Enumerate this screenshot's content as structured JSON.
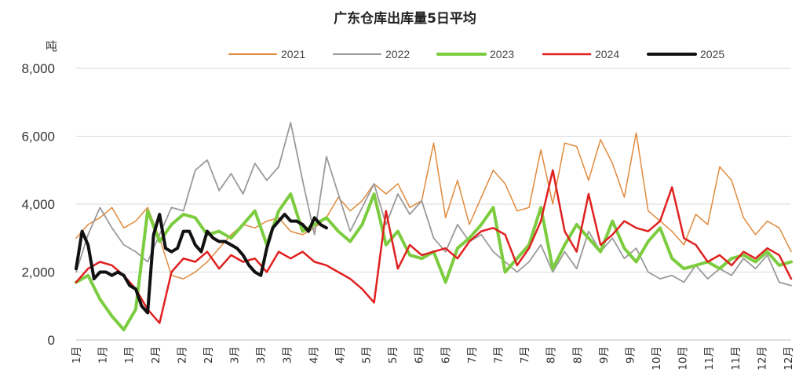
{
  "chart_data": {
    "type": "line",
    "title": "广东仓库出库量5日平均",
    "ylabel": "吨",
    "xlabel": "",
    "ylim": [
      0,
      8000
    ],
    "yticks": [
      0,
      2000,
      4000,
      6000,
      8000
    ],
    "ytick_labels": [
      "0",
      "2,000",
      "4,000",
      "6,000",
      "8,000"
    ],
    "x_categories": [
      "1月",
      "1月",
      "1月",
      "2月",
      "2月",
      "2月",
      "3月",
      "3月",
      "3月",
      "4月",
      "4月",
      "5月",
      "5月",
      "6月",
      "6月",
      "7月",
      "7月",
      "7月",
      "8月",
      "8月",
      "9月",
      "9月",
      "10月",
      "10月",
      "11月",
      "11月",
      "12月",
      "12月"
    ],
    "grid": "horizontal",
    "legend_position": "top",
    "x_range": [
      0,
      12
    ],
    "series": [
      {
        "name": "2021",
        "color": "#e08a3c",
        "width": 1.5,
        "x": [
          0.0,
          0.2,
          0.4,
          0.6,
          0.8,
          1.0,
          1.2,
          1.4,
          1.6,
          1.8,
          2.0,
          2.2,
          2.4,
          2.6,
          2.8,
          3.0,
          3.2,
          3.4,
          3.6,
          3.8,
          4.0,
          4.2,
          4.4,
          4.6,
          4.8,
          5.0,
          5.2,
          5.4,
          5.6,
          5.8,
          6.0,
          6.2,
          6.4,
          6.6,
          6.8,
          7.0,
          7.2,
          7.4,
          7.6,
          7.8,
          8.0,
          8.2,
          8.4,
          8.6,
          8.8,
          9.0,
          9.2,
          9.4,
          9.6,
          9.8,
          10.0,
          10.2,
          10.4,
          10.6,
          10.8,
          11.0,
          11.2,
          11.4,
          11.6,
          11.8,
          12.0
        ],
        "y": [
          3000,
          3400,
          3600,
          3900,
          3300,
          3500,
          3900,
          3000,
          1900,
          1800,
          2000,
          2300,
          2700,
          3100,
          3400,
          3300,
          3500,
          3600,
          3200,
          3100,
          3300,
          3600,
          4200,
          3800,
          4100,
          4600,
          4300,
          4600,
          3900,
          4100,
          5800,
          3600,
          4700,
          3400,
          4200,
          5000,
          4600,
          3800,
          3900,
          5600,
          4000,
          5800,
          5700,
          4700,
          5900,
          5200,
          4200,
          6100,
          3800,
          3500,
          3200,
          2800,
          3700,
          3400,
          5100,
          4700,
          3600,
          3100,
          3500,
          3300,
          2600
        ]
      },
      {
        "name": "2022",
        "color": "#9a9a9a",
        "width": 1.8,
        "x": [
          0.0,
          0.2,
          0.4,
          0.6,
          0.8,
          1.0,
          1.2,
          1.4,
          1.6,
          1.8,
          2.0,
          2.2,
          2.4,
          2.6,
          2.8,
          3.0,
          3.2,
          3.4,
          3.6,
          3.8,
          4.0,
          4.2,
          4.4,
          4.6,
          4.8,
          5.0,
          5.2,
          5.4,
          5.6,
          5.8,
          6.0,
          6.2,
          6.4,
          6.6,
          6.8,
          7.0,
          7.2,
          7.4,
          7.6,
          7.8,
          8.0,
          8.2,
          8.4,
          8.6,
          8.8,
          9.0,
          9.2,
          9.4,
          9.6,
          9.8,
          10.0,
          10.2,
          10.4,
          10.6,
          10.8,
          11.0,
          11.2,
          11.4,
          11.6,
          11.8,
          12.0
        ],
        "y": [
          2000,
          3100,
          3900,
          3300,
          2800,
          2600,
          2300,
          3100,
          3900,
          3800,
          5000,
          5300,
          4400,
          4900,
          4300,
          5200,
          4700,
          5100,
          6400,
          4700,
          3100,
          5400,
          4300,
          3200,
          3900,
          4600,
          3400,
          4300,
          3700,
          4100,
          3000,
          2600,
          3400,
          2900,
          3100,
          2600,
          2300,
          2000,
          2300,
          2800,
          2000,
          2600,
          2100,
          3200,
          2600,
          3000,
          2400,
          2700,
          2000,
          1800,
          1900,
          1700,
          2200,
          1800,
          2100,
          1900,
          2400,
          2100,
          2500,
          1700,
          1600
        ]
      },
      {
        "name": "2023",
        "color": "#7ccc3f",
        "width": 4,
        "x": [
          0.0,
          0.2,
          0.4,
          0.6,
          0.8,
          1.0,
          1.2,
          1.4,
          1.6,
          1.8,
          2.0,
          2.2,
          2.4,
          2.6,
          2.8,
          3.0,
          3.2,
          3.4,
          3.6,
          3.8,
          4.0,
          4.2,
          4.4,
          4.6,
          4.8,
          5.0,
          5.2,
          5.4,
          5.6,
          5.8,
          6.0,
          6.2,
          6.4,
          6.6,
          6.8,
          7.0,
          7.2,
          7.4,
          7.6,
          7.8,
          8.0,
          8.2,
          8.4,
          8.6,
          8.8,
          9.0,
          9.2,
          9.4,
          9.6,
          9.8,
          10.0,
          10.2,
          10.4,
          10.6,
          10.8,
          11.0,
          11.2,
          11.4,
          11.6,
          11.8,
          12.0
        ],
        "y": [
          1700,
          1900,
          1200,
          700,
          300,
          900,
          3800,
          2900,
          3400,
          3700,
          3600,
          3100,
          3200,
          3000,
          3400,
          3800,
          2800,
          3800,
          4300,
          3200,
          3400,
          3600,
          3200,
          2900,
          3400,
          4300,
          2800,
          3200,
          2500,
          2400,
          2600,
          1700,
          2700,
          3000,
          3400,
          3900,
          2000,
          2400,
          2800,
          3900,
          2100,
          2800,
          3400,
          3000,
          2600,
          3500,
          2700,
          2300,
          2900,
          3300,
          2400,
          2100,
          2200,
          2300,
          2100,
          2400,
          2500,
          2300,
          2600,
          2200,
          2300
        ]
      },
      {
        "name": "2024",
        "color": "#e02020",
        "width": 2.5,
        "x": [
          0.0,
          0.2,
          0.4,
          0.6,
          0.8,
          1.0,
          1.2,
          1.4,
          1.6,
          1.8,
          2.0,
          2.2,
          2.4,
          2.6,
          2.8,
          3.0,
          3.2,
          3.4,
          3.6,
          3.8,
          4.0,
          4.2,
          4.4,
          4.6,
          4.8,
          5.0,
          5.2,
          5.4,
          5.6,
          5.8,
          6.0,
          6.2,
          6.4,
          6.6,
          6.8,
          7.0,
          7.2,
          7.4,
          7.6,
          7.8,
          8.0,
          8.2,
          8.4,
          8.6,
          8.8,
          9.0,
          9.2,
          9.4,
          9.6,
          9.8,
          10.0,
          10.2,
          10.4,
          10.6,
          10.8,
          11.0,
          11.2,
          11.4,
          11.6,
          11.8,
          12.0
        ],
        "y": [
          1700,
          2100,
          2300,
          2200,
          1900,
          1500,
          900,
          500,
          2000,
          2400,
          2300,
          2600,
          2100,
          2500,
          2300,
          2400,
          2000,
          2600,
          2400,
          2600,
          2300,
          2200,
          2000,
          1800,
          1500,
          1100,
          3800,
          2100,
          2800,
          2500,
          2600,
          2700,
          2400,
          2900,
          3200,
          3300,
          3100,
          2200,
          2700,
          3500,
          5000,
          3200,
          2600,
          4300,
          2800,
          3100,
          3500,
          3300,
          3200,
          3500,
          4500,
          3000,
          2800,
          2300,
          2500,
          2200,
          2600,
          2400,
          2700,
          2500,
          1800
        ]
      },
      {
        "name": "2025",
        "color": "#111111",
        "width": 4,
        "x": [
          0.0,
          0.1,
          0.2,
          0.3,
          0.4,
          0.5,
          0.6,
          0.7,
          0.8,
          0.9,
          1.0,
          1.1,
          1.2,
          1.3,
          1.4,
          1.5,
          1.6,
          1.7,
          1.8,
          1.9,
          2.0,
          2.1,
          2.2,
          2.3,
          2.4,
          2.5,
          2.6,
          2.7,
          2.8,
          2.9,
          3.0,
          3.1,
          3.2,
          3.3,
          3.4,
          3.5,
          3.6,
          3.7,
          3.8,
          3.9,
          4.0,
          4.1,
          4.2
        ],
        "y": [
          2100,
          3200,
          2800,
          1800,
          2000,
          2000,
          1900,
          2000,
          1900,
          1600,
          1500,
          1000,
          800,
          3100,
          3700,
          2700,
          2600,
          2700,
          3200,
          3200,
          2800,
          2600,
          3200,
          3000,
          2900,
          2900,
          2800,
          2700,
          2500,
          2200,
          2000,
          1900,
          2700,
          3300,
          3500,
          3700,
          3500,
          3500,
          3400,
          3200,
          3600,
          3400,
          3300
        ]
      }
    ]
  }
}
